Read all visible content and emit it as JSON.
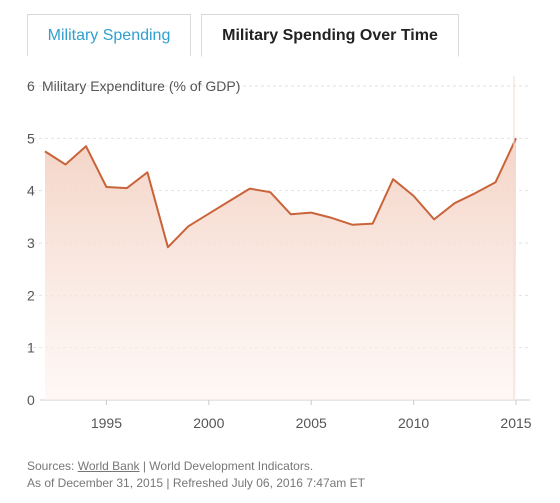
{
  "tabs": [
    {
      "label": "Military Spending"
    },
    {
      "label": "Military Spending Over Time"
    }
  ],
  "chart_data": {
    "type": "area",
    "ylabel": "Military Expenditure (% of GDP)",
    "xlabel": "",
    "xlim": [
      1992,
      2015
    ],
    "ylim": [
      0,
      6
    ],
    "yticks": [
      0,
      1,
      2,
      3,
      4,
      5,
      6
    ],
    "xticks": [
      "1995",
      "2000",
      "2005",
      "2010",
      "2015"
    ],
    "grid": true,
    "colors": {
      "line": "#c9643a",
      "fill_top": "#f3cfc0",
      "fill_bottom": "#fdf3ef"
    },
    "series": [
      {
        "x": [
          1992,
          1993,
          1994,
          1995,
          1996,
          1997,
          1998,
          1999,
          2000,
          2001,
          2002,
          2003,
          2004,
          2005,
          2006,
          2007,
          2008,
          2009,
          2010,
          2011,
          2012,
          2013,
          2014,
          2015
        ],
        "values": [
          4.75,
          4.5,
          4.85,
          4.07,
          4.05,
          4.35,
          2.92,
          3.32,
          3.56,
          3.8,
          4.04,
          3.97,
          3.55,
          3.58,
          3.48,
          3.35,
          3.37,
          4.22,
          3.9,
          3.45,
          3.76,
          3.95,
          4.16,
          5.0
        ]
      }
    ]
  },
  "footer": {
    "sources_prefix": "Sources: ",
    "source_link": "World Bank",
    "sources_suffix": " | World Development Indicators.",
    "as_of": "As of December 31, 2015 | Refreshed July 06, 2016 7:47am ET"
  }
}
